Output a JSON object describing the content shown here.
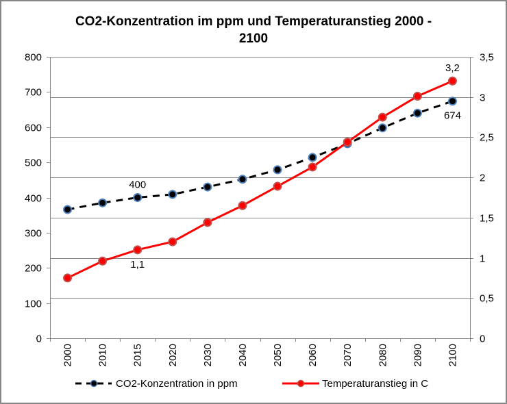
{
  "chart_data": {
    "type": "line",
    "title_lines": [
      "CO2-Konzentration im ppm und Temperaturanstieg 2000 -",
      "2100"
    ],
    "categories": [
      "2000",
      "2010",
      "2015",
      "2020",
      "2030",
      "2040",
      "2050",
      "2060",
      "2070",
      "2080",
      "2090",
      "2100"
    ],
    "y_left": {
      "min": 0,
      "max": 800,
      "step": 100,
      "ticks": [
        "0",
        "100",
        "200",
        "300",
        "400",
        "500",
        "600",
        "700",
        "800"
      ]
    },
    "y_right": {
      "min": 0,
      "max": 3.5,
      "step": 0.5,
      "ticks": [
        "0",
        "0,5",
        "1",
        "1,5",
        "2",
        "2,5",
        "3",
        "3,5"
      ]
    },
    "grid": true,
    "legend_position": "bottom",
    "series": [
      {
        "name": "CO2-Konzentration in ppm",
        "axis": "left",
        "style": "dashed",
        "line_color": "#000000",
        "marker_fill": "#000000",
        "marker_stroke": "#4f81bd",
        "values": [
          366,
          385,
          400,
          409,
          430,
          452,
          479,
          514,
          553,
          598,
          640,
          674
        ],
        "data_labels": [
          {
            "index": 2,
            "text": "400",
            "position": "above"
          },
          {
            "index": 11,
            "text": "674",
            "position": "below"
          }
        ]
      },
      {
        "name": "Temperaturanstieg in C",
        "axis": "right",
        "style": "solid",
        "line_color": "#ff0000",
        "marker_fill": "#ff0000",
        "marker_stroke": "#c0504d",
        "values": [
          0.75,
          0.96,
          1.1,
          1.2,
          1.44,
          1.65,
          1.89,
          2.13,
          2.44,
          2.75,
          3.01,
          3.2
        ],
        "data_labels": [
          {
            "index": 2,
            "text": "1,1",
            "position": "below"
          },
          {
            "index": 11,
            "text": "3,2",
            "position": "above"
          }
        ]
      }
    ]
  }
}
